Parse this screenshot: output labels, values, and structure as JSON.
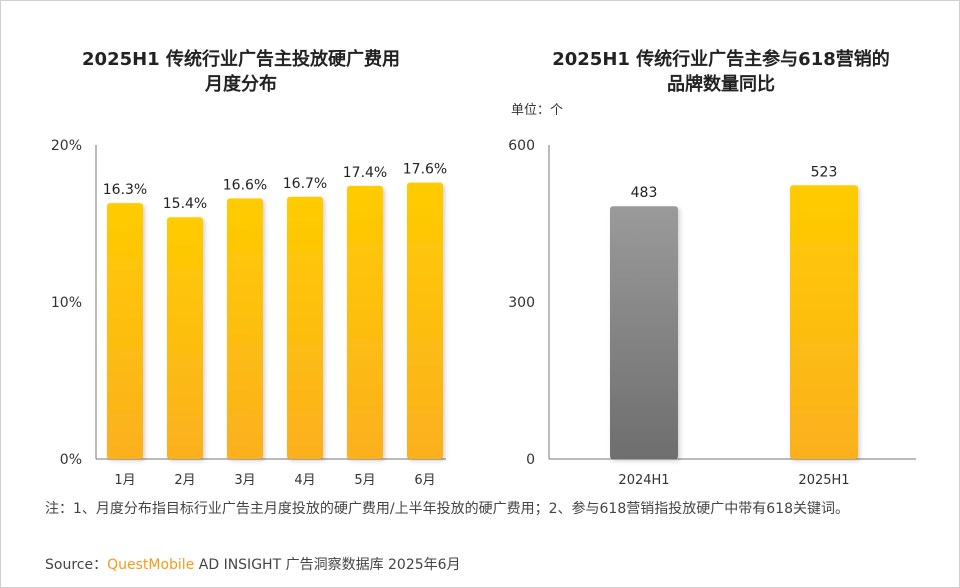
{
  "chart_data": [
    {
      "type": "bar",
      "title": "2025H1 传统行业广告主投放硬广费用月度分布",
      "title_lines": [
        "2025H1 传统行业广告主投放硬广费用",
        "月度分布"
      ],
      "categories": [
        "1月",
        "2月",
        "3月",
        "4月",
        "5月",
        "6月"
      ],
      "values": [
        16.3,
        15.4,
        16.6,
        16.7,
        17.4,
        17.6
      ],
      "value_labels": [
        "16.3%",
        "15.4%",
        "16.6%",
        "16.7%",
        "17.4%",
        "17.6%"
      ],
      "ylim": [
        0,
        20
      ],
      "yticks": [
        0,
        10,
        20
      ],
      "ytick_labels": [
        "0%",
        "10%",
        "20%"
      ],
      "xlabel": "",
      "ylabel": "",
      "colors": [
        "#ffcc00",
        "#fbb01f"
      ]
    },
    {
      "type": "bar",
      "title": "2025H1 传统行业广告主参与618营销的品牌数量同比",
      "title_lines": [
        "2025H1 传统行业广告主参与618营销的",
        "品牌数量同比"
      ],
      "unit": "单位：个",
      "categories": [
        "2024H1",
        "2025H1"
      ],
      "values": [
        483,
        523
      ],
      "value_labels": [
        "483",
        "523"
      ],
      "ylim": [
        0,
        600
      ],
      "yticks": [
        0,
        300,
        600
      ],
      "ytick_labels": [
        "0",
        "300",
        "600"
      ],
      "xlabel": "",
      "ylabel": "",
      "colors": [
        [
          "#9a9a9a",
          "#6e6e6e"
        ],
        [
          "#ffcc00",
          "#fbb01f"
        ]
      ]
    }
  ],
  "note": "注：1、月度分布指目标行业广告主月度投放的硬广费用/上半年投放的硬广费用；2、参与618营销指投放硬广中带有618关键词。",
  "source": {
    "label": "Source：",
    "brand": "QuestMobile",
    "rest": " AD INSIGHT 广告洞察数据库 2025年6月"
  }
}
